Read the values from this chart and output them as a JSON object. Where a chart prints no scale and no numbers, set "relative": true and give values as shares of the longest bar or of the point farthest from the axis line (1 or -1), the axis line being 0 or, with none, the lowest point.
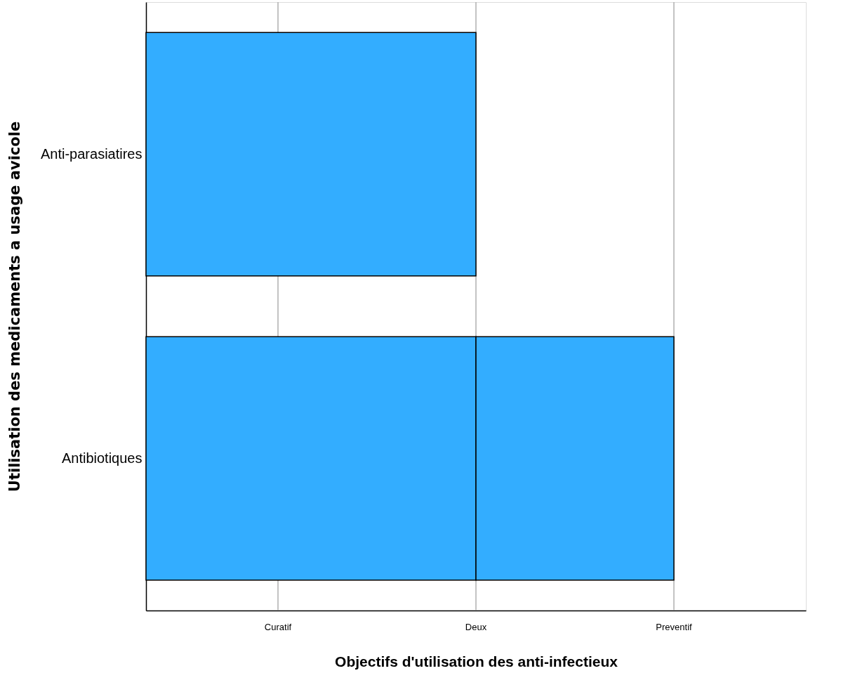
{
  "chart_data": {
    "type": "bar",
    "orientation": "horizontal",
    "stacked": true,
    "relative": true,
    "xlabel": "Objectifs d'utilisation des anti-infectieux",
    "ylabel": "Utilisation des medicaments a usage avicole",
    "categories": [
      "Anti-parasiatires",
      "Antibiotiques"
    ],
    "series": [
      {
        "color": "#33adff",
        "values": [
          0.625,
          0.625
        ]
      },
      {
        "color": "#33adff",
        "values": [
          null,
          0.375
        ]
      }
    ],
    "xlim": [
      0,
      1.25
    ],
    "ref_lines": [
      {
        "axis": "x",
        "value": 0.25,
        "label": "Curatif",
        "color": "#b0b0b0"
      },
      {
        "axis": "x",
        "value": 0.625,
        "label": "Deux",
        "color": "#b0b0b0"
      },
      {
        "axis": "x",
        "value": 1,
        "label": "Preventif",
        "color": "#b0b0b0"
      }
    ],
    "legend": false
  }
}
